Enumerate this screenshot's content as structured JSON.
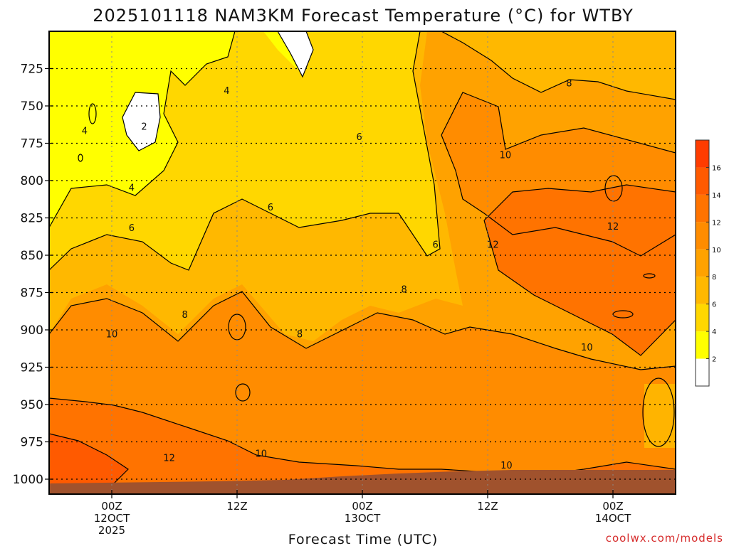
{
  "chart_data": {
    "type": "heatmap",
    "title": "2025101118 NAM3KM Forecast Temperature (°C) for WTBY",
    "xlabel": "Forecast Time (UTC)",
    "credit": "coolwx.com/models",
    "y_ticks": [
      "725",
      "750",
      "775",
      "800",
      "825",
      "850",
      "875",
      "900",
      "925",
      "950",
      "975",
      "1000"
    ],
    "y_range": [
      700,
      1010
    ],
    "x_ticks": [
      {
        "t": 6,
        "lines": [
          "00Z",
          "12OCT",
          "2025"
        ]
      },
      {
        "t": 18,
        "lines": [
          "12Z"
        ]
      },
      {
        "t": 30,
        "lines": [
          "00Z",
          "13OCT"
        ]
      },
      {
        "t": 42,
        "lines": [
          "12Z"
        ]
      },
      {
        "t": 54,
        "lines": [
          "00Z",
          "14OCT"
        ]
      }
    ],
    "x_range": [
      0,
      60
    ],
    "colorbar": {
      "levels": [
        0,
        2,
        4,
        6,
        8,
        10,
        12,
        14,
        16,
        18
      ],
      "tick_labels": [
        "2",
        "4",
        "6",
        "8",
        "10",
        "12",
        "14",
        "16"
      ],
      "colors": [
        "#ffffff",
        "#ffff00",
        "#ffd700",
        "#ffb800",
        "#ffa200",
        "#ff8c00",
        "#ff7300",
        "#ff5a00",
        "#ff3c00"
      ]
    },
    "contour_labels": [
      {
        "t": 3.4,
        "p": 767,
        "text": "4"
      },
      {
        "t": 9.1,
        "p": 764,
        "text": "2"
      },
      {
        "t": 17.0,
        "p": 740,
        "text": "4"
      },
      {
        "t": 7.9,
        "p": 805,
        "text": "4"
      },
      {
        "t": 7.9,
        "p": 832,
        "text": "6"
      },
      {
        "t": 21.2,
        "p": 818,
        "text": "6"
      },
      {
        "t": 29.7,
        "p": 771,
        "text": "6"
      },
      {
        "t": 37.0,
        "p": 843,
        "text": "6"
      },
      {
        "t": 13.0,
        "p": 890,
        "text": "8"
      },
      {
        "t": 24.0,
        "p": 903,
        "text": "8"
      },
      {
        "t": 34.0,
        "p": 873,
        "text": "8"
      },
      {
        "t": 49.8,
        "p": 735,
        "text": "8"
      },
      {
        "t": 6.0,
        "p": 903,
        "text": "10"
      },
      {
        "t": 20.3,
        "p": 983,
        "text": "10"
      },
      {
        "t": 43.8,
        "p": 991,
        "text": "10"
      },
      {
        "t": 43.7,
        "p": 783,
        "text": "10"
      },
      {
        "t": 51.5,
        "p": 912,
        "text": "10"
      },
      {
        "t": 11.5,
        "p": 986,
        "text": "12"
      },
      {
        "t": 42.5,
        "p": 843,
        "text": "12"
      },
      {
        "t": 54.0,
        "p": 831,
        "text": "12"
      }
    ]
  }
}
